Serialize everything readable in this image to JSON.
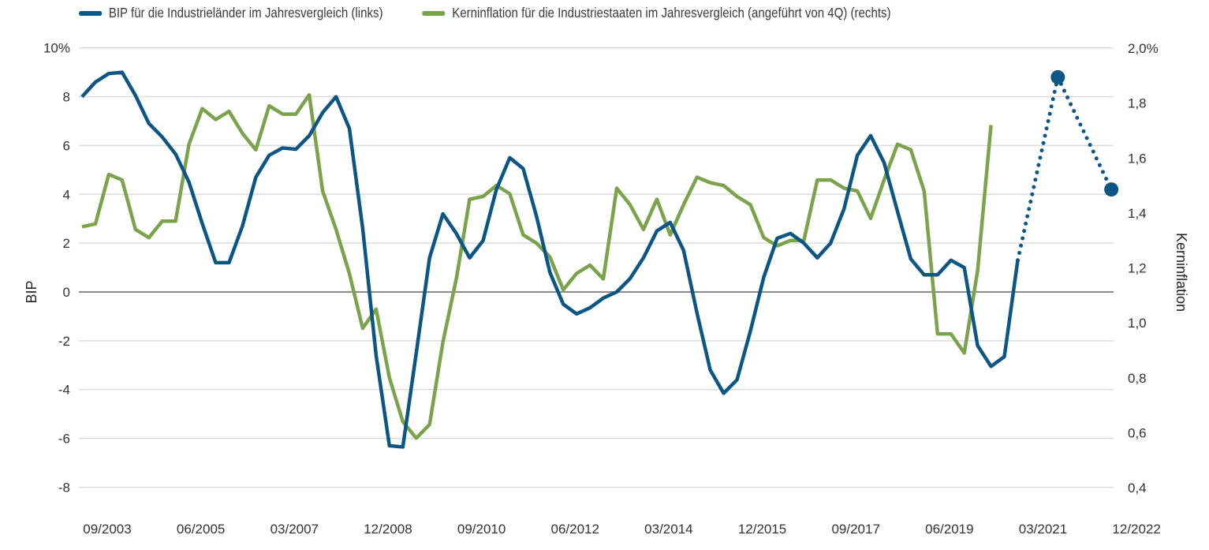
{
  "legend": {
    "series_1": "BIP für die Industrieländer im Jahresvergleich (links)",
    "series_2": "Kerninflation für die Industriestaaten im Jahresvergleich (angeführt von 4Q) (rechts)"
  },
  "colors": {
    "bip": "#0b5685",
    "inflation": "#7ba34c",
    "grid": "#dcdcdc",
    "zero": "#8c8c8c"
  },
  "axes": {
    "left_label": "BIP",
    "right_label": "Kerninflation",
    "left_ticks": [
      "10%",
      "8",
      "6",
      "4",
      "2",
      "0",
      "-2",
      "-4",
      "-6",
      "-8"
    ],
    "right_ticks": [
      "2,0%",
      "1,8",
      "1,6",
      "1,4",
      "1,2",
      "1,0",
      "0,8",
      "0,6",
      "0,4"
    ],
    "x_ticks": [
      "09/2003",
      "06/2005",
      "03/2007",
      "12/2008",
      "09/2010",
      "06/2012",
      "03/2014",
      "12/2015",
      "09/2017",
      "06/2019",
      "03/2021",
      "12/2022"
    ]
  },
  "chart_data": {
    "type": "line",
    "title": "",
    "xlabel": "",
    "ylabel": "BIP",
    "y2label": "Kerninflation",
    "ylim": [
      -9,
      10
    ],
    "y2lim": [
      0.4,
      2.0
    ],
    "grid": true,
    "legend_position": "top",
    "x_start": "Q3 2003",
    "x_frequency": "quarterly",
    "x_tick_labels": [
      "09/2003",
      "06/2005",
      "03/2007",
      "12/2008",
      "09/2010",
      "06/2012",
      "03/2014",
      "12/2015",
      "09/2017",
      "06/2019",
      "03/2021",
      "12/2022"
    ],
    "series": [
      {
        "name": "BIP für die Industrieländer im Jahresvergleich (links)",
        "axis": "left",
        "unit": "%",
        "values": [
          8.0,
          8.6,
          8.95,
          9.0,
          8.05,
          6.9,
          6.35,
          5.65,
          4.5,
          2.8,
          1.2,
          1.2,
          2.7,
          4.7,
          5.6,
          5.9,
          5.85,
          6.4,
          7.35,
          8.0,
          6.7,
          2.6,
          -2.6,
          -6.3,
          -6.35,
          -2.5,
          1.4,
          3.2,
          2.4,
          1.4,
          2.1,
          4.2,
          5.5,
          5.05,
          3.1,
          0.8,
          -0.5,
          -0.9,
          -0.65,
          -0.25,
          0.0,
          0.55,
          1.4,
          2.5,
          2.85,
          1.7,
          -0.85,
          -3.2,
          -4.15,
          -3.6,
          -1.6,
          0.6,
          2.2,
          2.4,
          2.0,
          1.4,
          2.0,
          3.4,
          5.6,
          6.4,
          5.3,
          3.3,
          1.35,
          0.7,
          0.7,
          1.3,
          1.0,
          -2.2,
          -3.05,
          -2.65,
          1.3
        ],
        "forecast": [
          {
            "x": "03/2021",
            "value": 1.3
          },
          {
            "x": "12/2021",
            "value": 8.8
          },
          {
            "x": "12/2022",
            "value": 4.2
          }
        ]
      },
      {
        "name": "Kerninflation für die Industriestaaten im Jahresvergleich (angeführt von 4Q) (rechts)",
        "axis": "right",
        "unit": "%",
        "values": [
          1.35,
          1.36,
          1.54,
          1.52,
          1.34,
          1.31,
          1.37,
          1.37,
          1.65,
          1.78,
          1.74,
          1.77,
          1.69,
          1.63,
          1.79,
          1.76,
          1.76,
          1.83,
          1.48,
          1.34,
          1.18,
          0.98,
          1.05,
          0.8,
          0.64,
          0.58,
          0.63,
          0.93,
          1.16,
          1.45,
          1.46,
          1.5,
          1.47,
          1.32,
          1.29,
          1.24,
          1.12,
          1.18,
          1.21,
          1.16,
          1.49,
          1.43,
          1.34,
          1.45,
          1.32,
          1.43,
          1.53,
          1.51,
          1.5,
          1.46,
          1.43,
          1.31,
          1.28,
          1.3,
          1.3,
          1.52,
          1.52,
          1.49,
          1.48,
          1.38,
          1.52,
          1.65,
          1.63,
          1.48,
          0.96,
          0.96,
          0.89,
          1.19,
          1.72
        ]
      }
    ]
  }
}
